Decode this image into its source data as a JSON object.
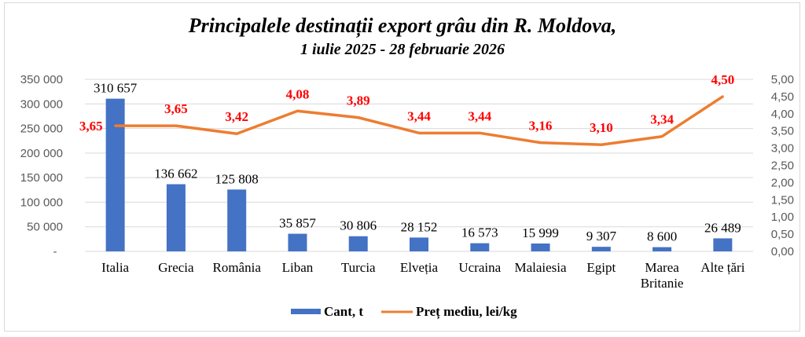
{
  "chart_data": {
    "type": "bar+line",
    "title": "Principalele destinații export grâu din R. Moldova,",
    "subtitle": "1 iulie 2025 - 28 februarie 2026",
    "categories": [
      "Italia",
      "Grecia",
      "România",
      "Liban",
      "Turcia",
      "Elveția",
      "Ucraina",
      "Malaiesia",
      "Egipt",
      "Marea Britanie",
      "Alte țări"
    ],
    "series": [
      {
        "name": "Cant, t",
        "type": "bar",
        "axis": "left",
        "color": "#4472C4",
        "values": [
          310657,
          136662,
          125808,
          35857,
          30806,
          28152,
          16573,
          15999,
          9307,
          8600,
          26489
        ],
        "labels": [
          "310 657",
          "136 662",
          "125 808",
          "35 857",
          "30 806",
          "28 152",
          "16 573",
          "15 999",
          "9 307",
          "8 600",
          "26 489"
        ]
      },
      {
        "name": "Preț mediu, lei/kg",
        "type": "line",
        "axis": "right",
        "color": "#ED7D31",
        "values": [
          3.65,
          3.65,
          3.42,
          4.08,
          3.89,
          3.44,
          3.44,
          3.16,
          3.1,
          3.34,
          4.5
        ],
        "labels": [
          "3,65",
          "3,65",
          "3,42",
          "4,08",
          "3,89",
          "3,44",
          "3,44",
          "3,16",
          "3,10",
          "3,34",
          "4,50"
        ]
      }
    ],
    "y_left": {
      "range": [
        0,
        350000
      ],
      "ticks": [
        "-",
        "50 000",
        "100 000",
        "150 000",
        "200 000",
        "250 000",
        "300 000",
        "350 000"
      ]
    },
    "y_right": {
      "range": [
        0,
        5
      ],
      "ticks": [
        "0,00",
        "0,50",
        "1,00",
        "1,50",
        "2,00",
        "2,50",
        "3,00",
        "3,50",
        "4,00",
        "4,50",
        "5,00"
      ]
    },
    "grid": true,
    "legend": "bottom",
    "legend_labels": [
      "Cant, t",
      "Preț mediu, lei/kg"
    ]
  }
}
